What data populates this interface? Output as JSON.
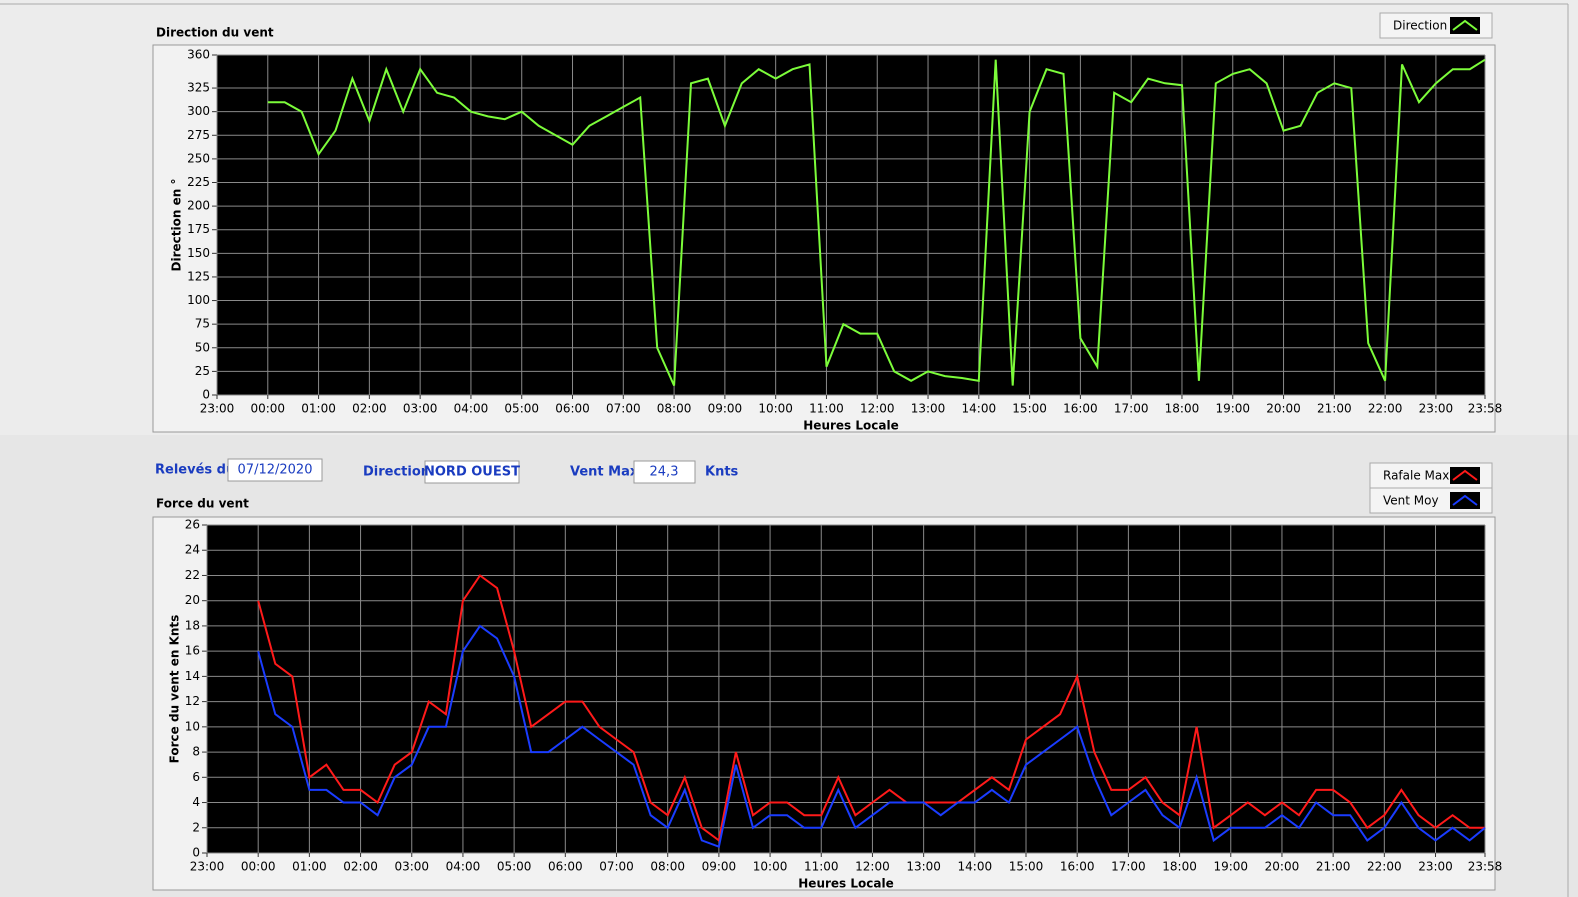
{
  "chart_data": [
    {
      "type": "line",
      "title": "Direction du vent",
      "x_label": "Heures Locale",
      "y_label": "Direction en °",
      "xlim": [
        0,
        1498
      ],
      "xticks": [
        {
          "value": 0,
          "label": "23:00"
        },
        {
          "value": 60,
          "label": "00:00"
        },
        {
          "value": 120,
          "label": "01:00"
        },
        {
          "value": 180,
          "label": "02:00"
        },
        {
          "value": 240,
          "label": "03:00"
        },
        {
          "value": 300,
          "label": "04:00"
        },
        {
          "value": 360,
          "label": "05:00"
        },
        {
          "value": 420,
          "label": "06:00"
        },
        {
          "value": 480,
          "label": "07:00"
        },
        {
          "value": 540,
          "label": "08:00"
        },
        {
          "value": 600,
          "label": "09:00"
        },
        {
          "value": 660,
          "label": "10:00"
        },
        {
          "value": 720,
          "label": "11:00"
        },
        {
          "value": 780,
          "label": "12:00"
        },
        {
          "value": 840,
          "label": "13:00"
        },
        {
          "value": 900,
          "label": "14:00"
        },
        {
          "value": 960,
          "label": "15:00"
        },
        {
          "value": 1020,
          "label": "16:00"
        },
        {
          "value": 1080,
          "label": "17:00"
        },
        {
          "value": 1140,
          "label": "18:00"
        },
        {
          "value": 1200,
          "label": "19:00"
        },
        {
          "value": 1260,
          "label": "20:00"
        },
        {
          "value": 1320,
          "label": "21:00"
        },
        {
          "value": 1380,
          "label": "22:00"
        },
        {
          "value": 1440,
          "label": "23:00"
        },
        {
          "value": 1498,
          "label": "23:58"
        }
      ],
      "ylim": [
        0,
        360
      ],
      "yticks": [
        0,
        25,
        50,
        75,
        100,
        125,
        150,
        175,
        200,
        225,
        250,
        275,
        300,
        325,
        360
      ],
      "grid": true,
      "x": [
        60,
        80,
        100,
        120,
        140,
        160,
        180,
        200,
        220,
        240,
        260,
        280,
        300,
        320,
        340,
        360,
        380,
        400,
        420,
        440,
        460,
        480,
        500,
        520,
        540,
        560,
        580,
        600,
        620,
        640,
        660,
        680,
        700,
        720,
        740,
        760,
        780,
        800,
        820,
        840,
        860,
        880,
        900,
        920,
        940,
        960,
        980,
        1000,
        1020,
        1040,
        1060,
        1080,
        1100,
        1120,
        1140,
        1160,
        1180,
        1200,
        1220,
        1240,
        1260,
        1280,
        1300,
        1320,
        1340,
        1360,
        1380,
        1400,
        1420,
        1440,
        1460,
        1480,
        1498
      ],
      "series": [
        {
          "name": "Direction",
          "color": "#7cfc3a",
          "values": [
            310,
            310,
            300,
            255,
            280,
            335,
            290,
            345,
            300,
            345,
            320,
            315,
            300,
            295,
            292,
            300,
            285,
            275,
            265,
            285,
            295,
            305,
            315,
            50,
            10,
            330,
            335,
            285,
            330,
            345,
            335,
            345,
            350,
            30,
            75,
            65,
            65,
            25,
            15,
            25,
            20,
            18,
            15,
            355,
            10,
            300,
            345,
            340,
            60,
            30,
            320,
            310,
            335,
            330,
            328,
            15,
            330,
            340,
            345,
            330,
            280,
            285,
            320,
            330,
            325,
            55,
            15,
            350,
            310,
            330,
            345,
            345,
            355
          ]
        }
      ]
    },
    {
      "type": "line",
      "title": "Force du vent",
      "x_label": "Heures Locale",
      "y_label": "Force du vent en Knts",
      "xlim": [
        0,
        1498
      ],
      "xticks": [
        {
          "value": 0,
          "label": "23:00"
        },
        {
          "value": 60,
          "label": "00:00"
        },
        {
          "value": 120,
          "label": "01:00"
        },
        {
          "value": 180,
          "label": "02:00"
        },
        {
          "value": 240,
          "label": "03:00"
        },
        {
          "value": 300,
          "label": "04:00"
        },
        {
          "value": 360,
          "label": "05:00"
        },
        {
          "value": 420,
          "label": "06:00"
        },
        {
          "value": 480,
          "label": "07:00"
        },
        {
          "value": 540,
          "label": "08:00"
        },
        {
          "value": 600,
          "label": "09:00"
        },
        {
          "value": 660,
          "label": "10:00"
        },
        {
          "value": 720,
          "label": "11:00"
        },
        {
          "value": 780,
          "label": "12:00"
        },
        {
          "value": 840,
          "label": "13:00"
        },
        {
          "value": 900,
          "label": "14:00"
        },
        {
          "value": 960,
          "label": "15:00"
        },
        {
          "value": 1020,
          "label": "16:00"
        },
        {
          "value": 1080,
          "label": "17:00"
        },
        {
          "value": 1140,
          "label": "18:00"
        },
        {
          "value": 1200,
          "label": "19:00"
        },
        {
          "value": 1260,
          "label": "20:00"
        },
        {
          "value": 1320,
          "label": "21:00"
        },
        {
          "value": 1380,
          "label": "22:00"
        },
        {
          "value": 1440,
          "label": "23:00"
        },
        {
          "value": 1498,
          "label": "23:58"
        }
      ],
      "ylim": [
        0,
        26
      ],
      "yticks": [
        0,
        2,
        4,
        6,
        8,
        10,
        12,
        14,
        16,
        18,
        20,
        22,
        24,
        26
      ],
      "grid": true,
      "x": [
        60,
        80,
        100,
        120,
        140,
        160,
        180,
        200,
        220,
        240,
        260,
        280,
        300,
        320,
        340,
        360,
        380,
        400,
        420,
        440,
        460,
        480,
        500,
        520,
        540,
        560,
        580,
        600,
        620,
        640,
        660,
        680,
        700,
        720,
        740,
        760,
        780,
        800,
        820,
        840,
        860,
        880,
        900,
        920,
        940,
        960,
        980,
        1000,
        1020,
        1040,
        1060,
        1080,
        1100,
        1120,
        1140,
        1160,
        1180,
        1200,
        1220,
        1240,
        1260,
        1280,
        1300,
        1320,
        1340,
        1360,
        1380,
        1400,
        1420,
        1440,
        1460,
        1480,
        1498
      ],
      "series": [
        {
          "name": "Rafale Max",
          "color": "#ff1a1a",
          "values": [
            20,
            15,
            14,
            6,
            7,
            5,
            5,
            4,
            7,
            8,
            12,
            11,
            20,
            22,
            21,
            16,
            10,
            11,
            12,
            12,
            10,
            9,
            8,
            4,
            3,
            6,
            2,
            1,
            8,
            3,
            4,
            4,
            3,
            3,
            6,
            3,
            4,
            5,
            4,
            4,
            4,
            4,
            5,
            6,
            5,
            9,
            10,
            11,
            14,
            8,
            5,
            5,
            6,
            4,
            3,
            10,
            2,
            3,
            4,
            3,
            4,
            3,
            5,
            5,
            4,
            2,
            3,
            5,
            3,
            2,
            3,
            2,
            2
          ]
        },
        {
          "name": "Vent Moy",
          "color": "#1a3cff",
          "values": [
            16,
            11,
            10,
            5,
            5,
            4,
            4,
            3,
            6,
            7,
            10,
            10,
            16,
            18,
            17,
            14,
            8,
            8,
            9,
            10,
            9,
            8,
            7,
            3,
            2,
            5,
            1,
            0.5,
            7,
            2,
            3,
            3,
            2,
            2,
            5,
            2,
            3,
            4,
            4,
            4,
            3,
            4,
            4,
            5,
            4,
            7,
            8,
            9,
            10,
            6,
            3,
            4,
            5,
            3,
            2,
            6,
            1,
            2,
            2,
            2,
            3,
            2,
            4,
            3,
            3,
            1,
            2,
            4,
            2,
            1,
            2,
            1,
            2
          ]
        }
      ]
    }
  ],
  "form": {
    "date_label": "Relevés du",
    "date_value": "07/12/2020",
    "direction_label": "Direction",
    "direction_value": "NORD OUEST",
    "max_label": "Vent Max",
    "max_value": "24,3",
    "max_unit": "Knts"
  }
}
